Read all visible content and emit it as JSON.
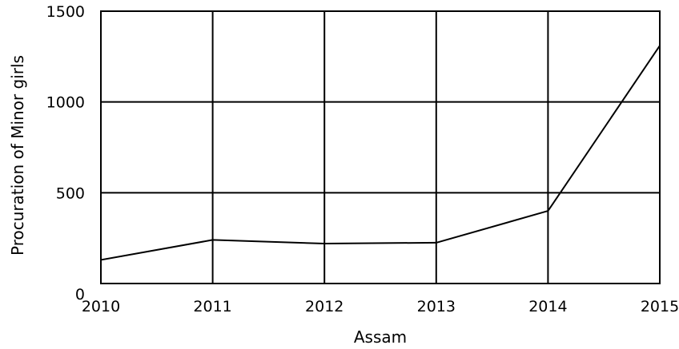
{
  "chart_data": {
    "type": "line",
    "title": "",
    "xlabel": "Assam",
    "ylabel": "Procuration of Minor girls",
    "x": [
      "2010",
      "2011",
      "2012",
      "2013",
      "2014",
      "2015"
    ],
    "series": [
      {
        "values": [
          130,
          240,
          220,
          225,
          400,
          1310
        ]
      }
    ],
    "xlim": [
      2010,
      2015
    ],
    "ylim": [
      0,
      1500
    ],
    "yticks": [
      "0",
      "500",
      "1000",
      "1500"
    ],
    "grid": true,
    "legend": "none"
  }
}
